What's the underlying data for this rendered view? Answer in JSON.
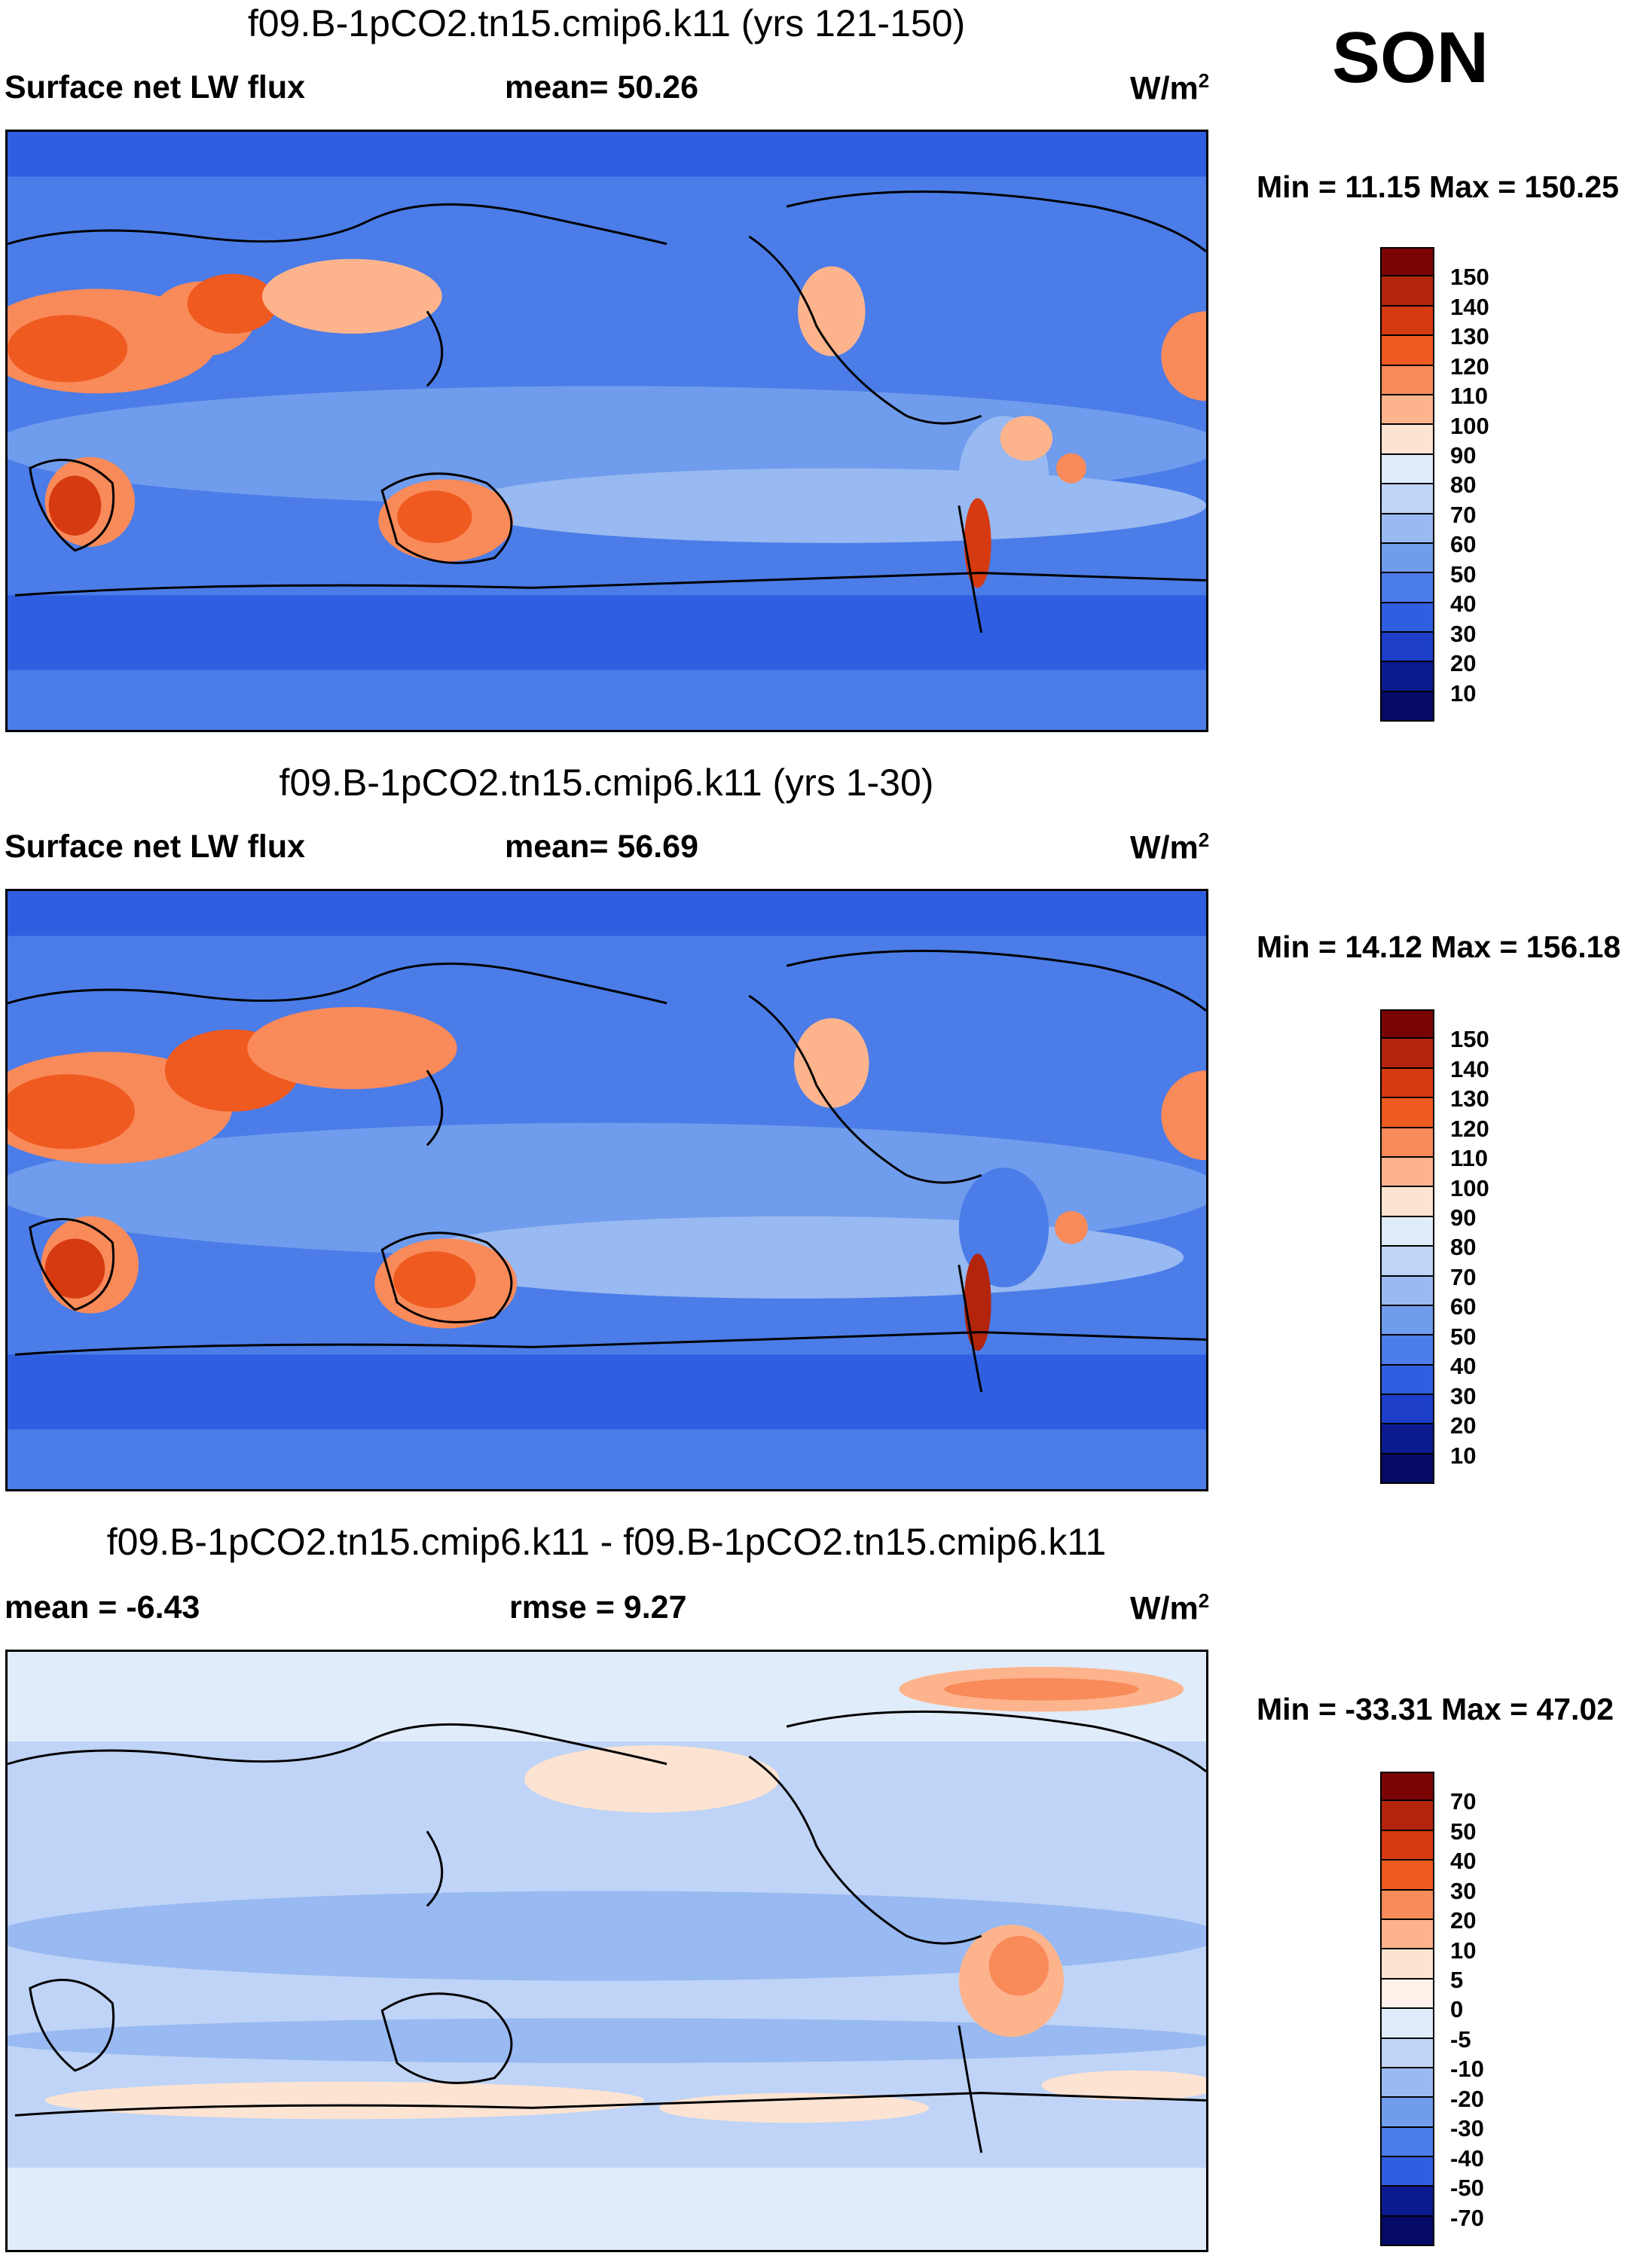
{
  "season": "SON",
  "panels": [
    {
      "title": "f09.B-1pCO2.tn15.cmip6.k11 (yrs 121-150)",
      "left_label": "Surface net LW flux",
      "center_label": "mean=  50.26",
      "units": "W/m",
      "units_sup": "2",
      "minmax": "Min =  11.15 Max = 150.25",
      "colorbar_ticks": [
        "150",
        "140",
        "130",
        "120",
        "110",
        "100",
        "90",
        "80",
        "70",
        "60",
        "50",
        "40",
        "30",
        "20",
        "10"
      ],
      "colorbar_colors": [
        "#7a0403",
        "#b2250c",
        "#d63a10",
        "#ef5a20",
        "#f98a5a",
        "#fdb48d",
        "#fde3d2",
        "#e0ecf9",
        "#bfd4f6",
        "#98b9f1",
        "#6f9cec",
        "#4b7ce8",
        "#2f5fe0",
        "#1c3ec8",
        "#0b1a8f",
        "#050a66"
      ]
    },
    {
      "title": "f09.B-1pCO2.tn15.cmip6.k11 (yrs 1-30)",
      "left_label": "Surface net LW flux",
      "center_label": "mean=  56.69",
      "units": "W/m",
      "units_sup": "2",
      "minmax": "Min =  14.12 Max = 156.18",
      "colorbar_ticks": [
        "150",
        "140",
        "130",
        "120",
        "110",
        "100",
        "90",
        "80",
        "70",
        "60",
        "50",
        "40",
        "30",
        "20",
        "10"
      ],
      "colorbar_colors": [
        "#7a0403",
        "#b2250c",
        "#d63a10",
        "#ef5a20",
        "#f98a5a",
        "#fdb48d",
        "#fde3d2",
        "#e0ecf9",
        "#bfd4f6",
        "#98b9f1",
        "#6f9cec",
        "#4b7ce8",
        "#2f5fe0",
        "#1c3ec8",
        "#0b1a8f",
        "#050a66"
      ]
    },
    {
      "title": "f09.B-1pCO2.tn15.cmip6.k11 - f09.B-1pCO2.tn15.cmip6.k11",
      "left_label": "mean =  -6.43",
      "center_label": "rmse =    9.27",
      "units": "W/m",
      "units_sup": "2",
      "minmax": "Min = -33.31 Max =  47.02",
      "colorbar_ticks": [
        "70",
        "50",
        "40",
        "30",
        "20",
        "10",
        "5",
        "0",
        "-5",
        "-10",
        "-20",
        "-30",
        "-40",
        "-50",
        "-70"
      ],
      "colorbar_colors": [
        "#7a0403",
        "#b2250c",
        "#d63a10",
        "#ef5a20",
        "#f98a5a",
        "#fdb48d",
        "#fde3d2",
        "#fdf1ea",
        "#e0ecf9",
        "#bfd4f6",
        "#98b9f1",
        "#6f9cec",
        "#4b7ce8",
        "#2f5fe0",
        "#0b1a8f",
        "#050a66"
      ]
    }
  ]
}
